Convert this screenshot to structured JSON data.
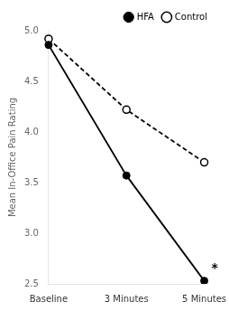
{
  "chart_data": {
    "type": "line",
    "categories": [
      "Baseline",
      "3 Minutes",
      "5 Minutes"
    ],
    "series": [
      {
        "name": "HFA",
        "color": "#000000",
        "values": [
          4.86,
          3.57,
          2.53
        ],
        "line_style": "solid",
        "marker": "circle"
      },
      {
        "name": "Control",
        "color": "#000000",
        "values": [
          4.92,
          4.22,
          3.7
        ],
        "line_style": "dashed",
        "marker": "open_circle"
      }
    ],
    "ylabel": "Mean In-Office Pain Rating",
    "ylim": [
      2.5,
      5.0
    ],
    "yticks": [
      2.5,
      {
        "value": 3.0,
        "label": "3.0"
      },
      3.5,
      {
        "value": 4.0,
        "label": "4.0"
      },
      4.5,
      {
        "value": 5.0,
        "label": "5.0"
      }
    ],
    "annotations": [
      {
        "text": "*",
        "x": "5 Minutes",
        "y": 2.65
      }
    ],
    "legend": "upper right",
    "grid": false
  }
}
